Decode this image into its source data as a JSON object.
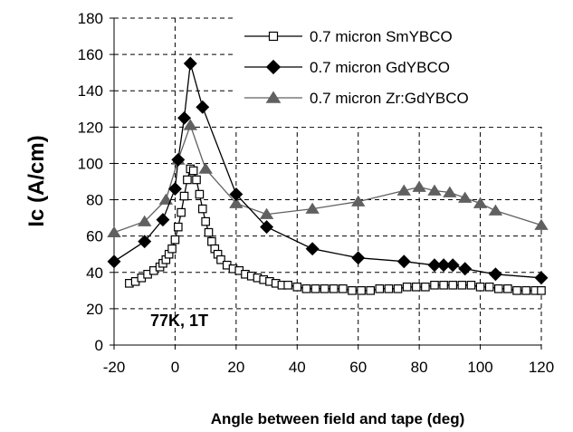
{
  "chart_data": {
    "type": "line",
    "xlabel": "Angle between field and tape (deg)",
    "ylabel": "Ic (A/cm)",
    "xlim": [
      -20,
      120
    ],
    "ylim": [
      0,
      180
    ],
    "xticks": [
      -20,
      0,
      20,
      40,
      60,
      80,
      100,
      120
    ],
    "yticks": [
      0,
      20,
      40,
      60,
      80,
      100,
      120,
      140,
      160,
      180
    ],
    "grid": "dashed",
    "legend_position": "top-right",
    "annotation": "77K, 1T",
    "series": [
      {
        "name": "0.7 micron SmYBCO",
        "marker": "square-open",
        "color": "#000000",
        "points": [
          [
            -15,
            34
          ],
          [
            -13,
            35
          ],
          [
            -11,
            37
          ],
          [
            -9,
            39
          ],
          [
            -7,
            41
          ],
          [
            -5,
            43
          ],
          [
            -4,
            45
          ],
          [
            -3,
            47
          ],
          [
            -2,
            50
          ],
          [
            -1,
            53
          ],
          [
            0,
            58
          ],
          [
            1,
            65
          ],
          [
            2,
            73
          ],
          [
            3,
            82
          ],
          [
            4,
            91
          ],
          [
            5,
            97
          ],
          [
            6,
            96
          ],
          [
            7,
            91
          ],
          [
            8,
            83
          ],
          [
            9,
            75
          ],
          [
            10,
            68
          ],
          [
            11,
            62
          ],
          [
            12,
            57
          ],
          [
            13,
            53
          ],
          [
            14,
            50
          ],
          [
            15,
            47
          ],
          [
            17,
            44
          ],
          [
            19,
            42
          ],
          [
            21,
            41
          ],
          [
            23,
            39
          ],
          [
            25,
            38
          ],
          [
            27,
            37
          ],
          [
            29,
            36
          ],
          [
            31,
            35
          ],
          [
            33,
            34
          ],
          [
            35,
            33
          ],
          [
            37,
            33
          ],
          [
            40,
            32
          ],
          [
            43,
            31
          ],
          [
            46,
            31
          ],
          [
            49,
            31
          ],
          [
            52,
            31
          ],
          [
            55,
            31
          ],
          [
            58,
            30
          ],
          [
            61,
            30
          ],
          [
            64,
            30
          ],
          [
            67,
            31
          ],
          [
            70,
            31
          ],
          [
            73,
            31
          ],
          [
            76,
            32
          ],
          [
            79,
            32
          ],
          [
            82,
            32
          ],
          [
            85,
            33
          ],
          [
            88,
            33
          ],
          [
            91,
            33
          ],
          [
            94,
            33
          ],
          [
            97,
            33
          ],
          [
            100,
            32
          ],
          [
            103,
            32
          ],
          [
            106,
            31
          ],
          [
            109,
            31
          ],
          [
            112,
            30
          ],
          [
            115,
            30
          ],
          [
            118,
            30
          ],
          [
            120,
            30
          ]
        ]
      },
      {
        "name": "0.7 micron GdYBCO",
        "marker": "diamond-filled",
        "color": "#000000",
        "points": [
          [
            -20,
            46
          ],
          [
            -10,
            57
          ],
          [
            -4,
            69
          ],
          [
            0,
            86
          ],
          [
            1,
            102
          ],
          [
            3,
            125
          ],
          [
            5,
            155
          ],
          [
            9,
            131
          ],
          [
            20,
            83
          ],
          [
            30,
            65
          ],
          [
            45,
            53
          ],
          [
            60,
            48
          ],
          [
            75,
            46
          ],
          [
            85,
            44
          ],
          [
            88,
            44
          ],
          [
            91,
            44
          ],
          [
            95,
            42
          ],
          [
            105,
            39
          ],
          [
            120,
            37
          ]
        ]
      },
      {
        "name": "0.7 micron Zr:GdYBCO",
        "marker": "triangle-filled",
        "color": "#606060",
        "points": [
          [
            -20,
            62
          ],
          [
            -10,
            68
          ],
          [
            -3,
            80
          ],
          [
            1,
            102
          ],
          [
            5,
            121
          ],
          [
            10,
            97
          ],
          [
            20,
            78
          ],
          [
            30,
            72
          ],
          [
            45,
            75
          ],
          [
            60,
            79
          ],
          [
            75,
            85
          ],
          [
            80,
            87
          ],
          [
            85,
            85
          ],
          [
            90,
            84
          ],
          [
            95,
            81
          ],
          [
            100,
            78
          ],
          [
            105,
            74
          ],
          [
            120,
            66
          ]
        ]
      }
    ]
  }
}
